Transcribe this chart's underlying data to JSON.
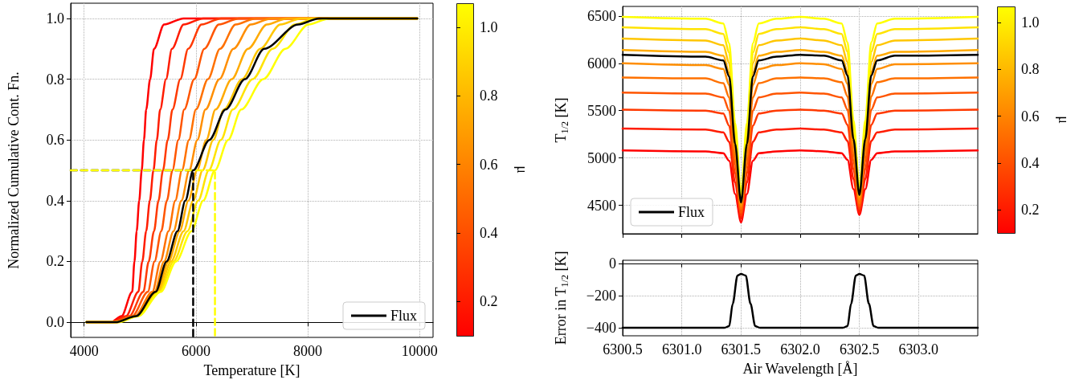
{
  "chart_data": [
    {
      "type": "line",
      "xlabel": "Temperature [K]",
      "ylabel": "Normalized Cumulative Cont. Fn.",
      "clabel": "μ",
      "xlim": [
        3760,
        10240
      ],
      "xticks": [
        4000,
        6000,
        8000,
        10000
      ],
      "ylim": [
        -0.05,
        1.05
      ],
      "yticks": [
        {
          "value": 0,
          "label": "0.0"
        },
        0.2,
        0.4,
        0.6,
        0.8,
        {
          "value": 1,
          "label": "1.0"
        }
      ],
      "clim": [
        0.1,
        1.07
      ],
      "cticks": [
        0.2,
        0.4,
        0.6,
        0.8,
        {
          "value": 1,
          "label": "1.0"
        }
      ],
      "grid": true,
      "legend": "bottom right",
      "series": [
        {
          "color": "#ff0000",
          "x": [
            4040,
            4480,
            4670,
            4860,
            4900,
            4940,
            4985,
            5030,
            5070,
            5110,
            5180,
            5250,
            5430,
            5780,
            9960
          ],
          "values": [
            0,
            0,
            0.02,
            0.1,
            0.2,
            0.3,
            0.4,
            0.5,
            0.6,
            0.7,
            0.8,
            0.9,
            0.98,
            1,
            1
          ]
        },
        {
          "color": "#ff1c00",
          "x": [
            4040,
            4490,
            4750,
            4970,
            5040,
            5110,
            5175,
            5240,
            5300,
            5360,
            5465,
            5570,
            5780,
            6130,
            9960
          ],
          "values": [
            0,
            0,
            0.02,
            0.1,
            0.2,
            0.3,
            0.4,
            0.5,
            0.6,
            0.7,
            0.8,
            0.9,
            0.98,
            1,
            1
          ]
        },
        {
          "color": "#ff3900",
          "x": [
            4040,
            4510,
            4810,
            5060,
            5155,
            5250,
            5330,
            5410,
            5495,
            5580,
            5720,
            5860,
            6100,
            6450,
            9960
          ],
          "values": [
            0,
            0,
            0.02,
            0.1,
            0.2,
            0.3,
            0.4,
            0.5,
            0.6,
            0.7,
            0.8,
            0.9,
            0.98,
            1,
            1
          ]
        },
        {
          "color": "#ff5500",
          "x": [
            4040,
            4520,
            4860,
            5140,
            5260,
            5380,
            5480,
            5580,
            5685,
            5790,
            5970,
            6150,
            6410,
            6770,
            9960
          ],
          "values": [
            0,
            0,
            0.02,
            0.1,
            0.2,
            0.3,
            0.4,
            0.5,
            0.6,
            0.7,
            0.8,
            0.9,
            0.98,
            1,
            1
          ]
        },
        {
          "color": "#ff7100",
          "x": [
            4040,
            4540,
            4910,
            5220,
            5365,
            5510,
            5630,
            5750,
            5875,
            6000,
            6215,
            6430,
            6710,
            7070,
            9960
          ],
          "values": [
            0,
            0,
            0.02,
            0.1,
            0.2,
            0.3,
            0.4,
            0.5,
            0.6,
            0.7,
            0.8,
            0.9,
            0.98,
            1,
            1
          ]
        },
        {
          "color": "#ff8e00",
          "x": [
            4040,
            4550,
            4920,
            5260,
            5430,
            5600,
            5740,
            5880,
            6025,
            6170,
            6420,
            6670,
            6980,
            7350,
            9960
          ],
          "values": [
            0,
            0,
            0.02,
            0.1,
            0.2,
            0.3,
            0.4,
            0.5,
            0.6,
            0.7,
            0.8,
            0.9,
            0.98,
            1,
            1
          ]
        },
        {
          "color": "#ffaa00",
          "x": [
            4040,
            4560,
            4940,
            5310,
            5510,
            5710,
            5865,
            6020,
            6185,
            6350,
            6640,
            6930,
            7270,
            7630,
            9960
          ],
          "values": [
            0,
            0,
            0.02,
            0.1,
            0.2,
            0.3,
            0.4,
            0.5,
            0.6,
            0.7,
            0.8,
            0.9,
            0.98,
            1,
            1
          ]
        },
        {
          "color": "#ffc600",
          "x": [
            4040,
            4580,
            4950,
            5330,
            5555,
            5780,
            5950,
            6120,
            6310,
            6500,
            6825,
            7150,
            7510,
            7880,
            9960
          ],
          "values": [
            0,
            0,
            0.02,
            0.1,
            0.2,
            0.3,
            0.4,
            0.5,
            0.6,
            0.7,
            0.8,
            0.9,
            0.98,
            1,
            1
          ]
        },
        {
          "color": "#ffe300",
          "x": [
            4040,
            4590,
            4960,
            5350,
            5600,
            5850,
            6040,
            6230,
            6445,
            6660,
            7015,
            7370,
            7770,
            8140,
            9960
          ],
          "values": [
            0,
            0,
            0.02,
            0.1,
            0.2,
            0.3,
            0.4,
            0.5,
            0.6,
            0.7,
            0.8,
            0.9,
            0.98,
            1,
            1
          ]
        },
        {
          "color": "#ffff00",
          "x": [
            4040,
            4610,
            4970,
            5370,
            5645,
            5920,
            6130,
            6340,
            6575,
            6810,
            7205,
            7600,
            8010,
            8390,
            9960
          ],
          "values": [
            0,
            0,
            0.02,
            0.1,
            0.2,
            0.3,
            0.4,
            0.5,
            0.6,
            0.7,
            0.8,
            0.9,
            0.98,
            1,
            1
          ]
        },
        {
          "name": "Flux",
          "color": "#000000",
          "x": [
            4040,
            4560,
            4930,
            5280,
            5475,
            5670,
            5810,
            5950,
            6240,
            6530,
            6875,
            7220,
            7830,
            8200,
            9960
          ],
          "values": [
            0,
            0,
            0.02,
            0.1,
            0.2,
            0.3,
            0.4,
            0.5,
            0.6,
            0.7,
            0.8,
            0.9,
            0.98,
            1,
            1
          ]
        },
        {
          "color": "#000000",
          "line_style": "dashed",
          "x": [
            3760,
            5950,
            5950
          ],
          "values": [
            0.5,
            0.5,
            -0.05
          ]
        },
        {
          "color": "#ffff00",
          "line_style": "dashed",
          "x": [
            3760,
            6340,
            6340
          ],
          "values": [
            0.5,
            0.5,
            -0.05
          ]
        }
      ]
    },
    {
      "type": "line",
      "ylabel": "T$_{1/2}$ [K]",
      "clabel": "μ",
      "tick_labels": "y",
      "xlim": [
        6300.5,
        6303.5
      ],
      "xticks": [
        {
          "value": 6300.5,
          "label": null
        },
        {
          "value": 6301,
          "label": null
        },
        {
          "value": 6301.5,
          "label": null
        },
        {
          "value": 6302,
          "label": null
        },
        {
          "value": 6302.5,
          "label": null
        },
        {
          "value": 6303,
          "label": null
        }
      ],
      "ylim": [
        4200,
        6600
      ],
      "yticks": [
        4500,
        5000,
        5500,
        6000,
        6500
      ],
      "clim": [
        0.1,
        1.07
      ],
      "cticks": [
        0.2,
        0.4,
        0.6,
        0.8,
        {
          "value": 1,
          "label": "1.0"
        }
      ],
      "grid": true,
      "legend": "bottom left",
      "x": [
        6300.5,
        6301.2,
        6301.35,
        6301.4,
        6301.45,
        6301.5,
        6301.55,
        6301.6,
        6301.65,
        6301.8,
        6302.0,
        6302.2,
        6302.35,
        6302.4,
        6302.45,
        6302.5,
        6302.55,
        6302.6,
        6302.65,
        6302.8,
        6303.5
      ],
      "series": [
        {
          "color": "#ff0000",
          "values": [
            5080,
            5070,
            5050,
            4970,
            4620,
            4320,
            4620,
            4970,
            5050,
            5070,
            5080,
            5070,
            5050,
            4980,
            4670,
            4400,
            4670,
            4980,
            5050,
            5070,
            5080
          ]
        },
        {
          "color": "#ff1c00",
          "values": [
            5310,
            5300,
            5270,
            5170,
            4740,
            4360,
            4740,
            5170,
            5270,
            5300,
            5310,
            5300,
            5270,
            5180,
            4780,
            4420,
            4780,
            5180,
            5270,
            5300,
            5310
          ]
        },
        {
          "color": "#ff3900",
          "values": [
            5510,
            5500,
            5470,
            5340,
            4840,
            4390,
            4840,
            5340,
            5470,
            5500,
            5510,
            5500,
            5470,
            5350,
            4880,
            4460,
            4880,
            5350,
            5470,
            5500,
            5510
          ]
        },
        {
          "color": "#ff5500",
          "values": [
            5690,
            5680,
            5640,
            5500,
            4930,
            4420,
            4930,
            5500,
            5640,
            5680,
            5690,
            5680,
            5640,
            5510,
            4970,
            4490,
            4970,
            5510,
            5640,
            5680,
            5690
          ]
        },
        {
          "color": "#ff7100",
          "values": [
            5850,
            5840,
            5790,
            5640,
            5010,
            4460,
            5010,
            5640,
            5790,
            5840,
            5850,
            5840,
            5800,
            5650,
            5050,
            4520,
            5050,
            5650,
            5800,
            5840,
            5850
          ]
        },
        {
          "color": "#ff8e00",
          "values": [
            6000,
            5980,
            5940,
            5770,
            5090,
            4490,
            5090,
            5770,
            5940,
            5980,
            6000,
            5990,
            5940,
            5780,
            5130,
            4560,
            5130,
            5780,
            5940,
            5990,
            6000
          ]
        },
        {
          "color": "#ffaa00",
          "values": [
            6140,
            6120,
            6080,
            5900,
            5170,
            4520,
            5170,
            5900,
            6080,
            6120,
            6140,
            6120,
            6080,
            5910,
            5210,
            4590,
            5210,
            5910,
            6080,
            6120,
            6140
          ]
        },
        {
          "color": "#ffc600",
          "values": [
            6260,
            6240,
            6190,
            6000,
            5240,
            4560,
            5240,
            6000,
            6190,
            6240,
            6260,
            6240,
            6190,
            6010,
            5270,
            4620,
            5270,
            6010,
            6190,
            6240,
            6260
          ]
        },
        {
          "color": "#ffe300",
          "values": [
            6380,
            6360,
            6310,
            6110,
            5310,
            4590,
            5310,
            6110,
            6310,
            6360,
            6380,
            6360,
            6310,
            6120,
            5340,
            4650,
            5340,
            6120,
            6310,
            6360,
            6380
          ]
        },
        {
          "color": "#ffff00",
          "values": [
            6490,
            6470,
            6420,
            6210,
            5370,
            4620,
            5370,
            6210,
            6420,
            6470,
            6490,
            6470,
            6420,
            6220,
            5400,
            4680,
            5400,
            6220,
            6420,
            6470,
            6490
          ]
        },
        {
          "name": "Flux",
          "color": "#000000",
          "values": [
            6090,
            6070,
            6030,
            5860,
            5150,
            4530,
            5150,
            5860,
            6030,
            6070,
            6090,
            6080,
            6030,
            5870,
            5200,
            4610,
            5200,
            5870,
            6030,
            6080,
            6090
          ]
        }
      ]
    },
    {
      "type": "line",
      "xlabel": "Air Wavelength [Å]",
      "ylabel": "Error in T$_{1/2}$ [K]",
      "xlim": [
        6300.5,
        6303.5
      ],
      "xticks": [
        6300.5,
        {
          "value": 6301,
          "label": "6301.0"
        },
        6301.5,
        {
          "value": 6302,
          "label": "6302.0"
        },
        6302.5,
        {
          "value": 6303,
          "label": "6303.0"
        }
      ],
      "ylim": [
        -450,
        20
      ],
      "yticks": [
        {
          "value": -400,
          "label": "−400"
        },
        {
          "value": -200,
          "label": "−200"
        },
        0
      ],
      "grid": true,
      "series": [
        {
          "color": "#000000",
          "x": [
            6300.5,
            6301.36,
            6301.4,
            6301.43,
            6301.47,
            6301.5,
            6301.54,
            6301.58,
            6301.62,
            6301.66,
            6302.36,
            6302.4,
            6302.43,
            6302.47,
            6302.5,
            6302.54,
            6302.58,
            6302.62,
            6302.66,
            6303.5
          ],
          "values": [
            -400,
            -400,
            -390,
            -250,
            -75,
            -65,
            -75,
            -250,
            -390,
            -400,
            -400,
            -390,
            -250,
            -75,
            -65,
            -75,
            -250,
            -390,
            -400,
            -400
          ]
        }
      ]
    }
  ]
}
